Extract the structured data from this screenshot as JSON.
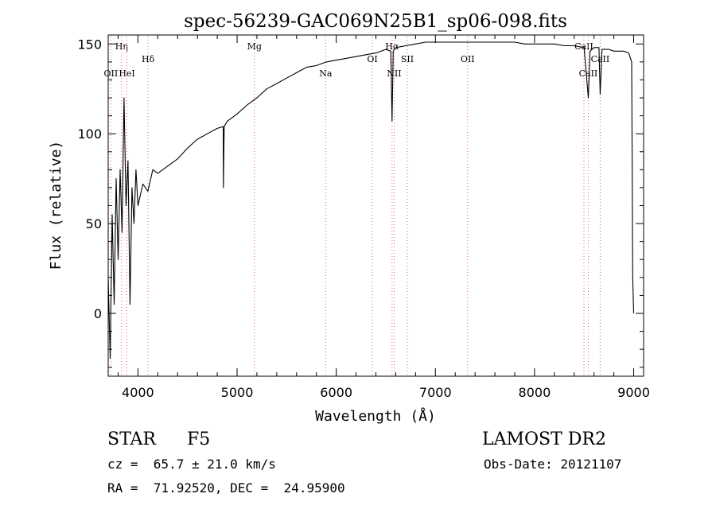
{
  "chart_data": {
    "type": "line",
    "title": "spec-56239-GAC069N25B1_sp06-098.fits",
    "xlabel": "Wavelength (Å)",
    "ylabel": "Flux (relative)",
    "xlim": [
      3700,
      9100
    ],
    "ylim": [
      -35,
      155
    ],
    "x_ticks": [
      4000,
      5000,
      6000,
      7000,
      8000,
      9000
    ],
    "x_tick_labels": [
      "4000",
      "5000",
      "6000",
      "7000",
      "8000",
      "9000"
    ],
    "y_ticks": [
      0,
      50,
      100,
      150
    ],
    "y_tick_labels": [
      "0",
      "50",
      "100",
      "150"
    ],
    "grid": false,
    "series": [
      {
        "x": [
          3700,
          3720,
          3740,
          3760,
          3780,
          3800,
          3820,
          3840,
          3860,
          3880,
          3900,
          3920,
          3940,
          3960,
          3980,
          4000,
          4050,
          4100,
          4150,
          4200,
          4300,
          4400,
          4500,
          4600,
          4700,
          4800,
          4860,
          4862,
          4870,
          4900,
          5000,
          5100,
          5200,
          5300,
          5400,
          5500,
          5600,
          5700,
          5800,
          5900,
          6000,
          6100,
          6200,
          6300,
          6400,
          6500,
          6550,
          6563,
          6575,
          6600,
          6700,
          6800,
          6900,
          7000,
          7100,
          7200,
          7300,
          7400,
          7500,
          7600,
          7700,
          7800,
          7900,
          8000,
          8100,
          8200,
          8300,
          8400,
          8500,
          8542,
          8560,
          8600,
          8650,
          8662,
          8680,
          8700,
          8750,
          8800,
          8850,
          8900,
          8950,
          8980,
          8990,
          9000
        ],
        "y": [
          20,
          -25,
          55,
          5,
          75,
          30,
          80,
          45,
          120,
          60,
          85,
          5,
          70,
          50,
          80,
          60,
          72,
          68,
          80,
          78,
          82,
          86,
          92,
          97,
          100,
          103,
          104,
          70,
          104,
          107,
          111,
          116,
          120,
          125,
          128,
          131,
          134,
          137,
          138,
          140,
          141,
          142,
          143,
          144,
          145,
          147,
          146,
          107,
          146,
          148,
          149,
          150,
          151,
          151,
          151,
          151,
          151,
          151,
          151,
          151,
          151,
          151,
          150,
          150,
          150,
          150,
          149,
          149,
          148,
          120,
          146,
          148,
          148,
          122,
          147,
          147,
          147,
          146,
          146,
          146,
          145,
          140,
          20,
          0
        ]
      }
    ],
    "lines": [
      {
        "label": "OII",
        "x": 3727,
        "row": "low"
      },
      {
        "label": "Hη",
        "x": 3835,
        "row": "top"
      },
      {
        "label": "HeI",
        "x": 3889,
        "row": "low"
      },
      {
        "label": "Hδ",
        "x": 4102,
        "row": "mid"
      },
      {
        "label": "Mg",
        "x": 5175,
        "row": "top"
      },
      {
        "label": "Na",
        "x": 5893,
        "row": "low"
      },
      {
        "label": "OI",
        "x": 6364,
        "row": "mid"
      },
      {
        "label": "Hα",
        "x": 6563,
        "row": "top"
      },
      {
        "label": "NII",
        "x": 6584,
        "row": "low"
      },
      {
        "label": "SII",
        "x": 6717,
        "row": "mid"
      },
      {
        "label": "OII",
        "x": 7325,
        "row": "mid"
      },
      {
        "label": "CaII",
        "x": 8498,
        "row": "top"
      },
      {
        "label": "CaII",
        "x": 8542,
        "row": "low"
      },
      {
        "label": "CaII",
        "x": 8662,
        "row": "mid"
      }
    ]
  },
  "info": {
    "object_class": "STAR",
    "subclass": "F5",
    "survey": "LAMOST DR2",
    "redshift": "cz =  65.7 ± 21.0 km/s",
    "obs_date": "Obs-Date: 20121107",
    "coords": "RA =  71.92520, DEC =  24.95900"
  }
}
